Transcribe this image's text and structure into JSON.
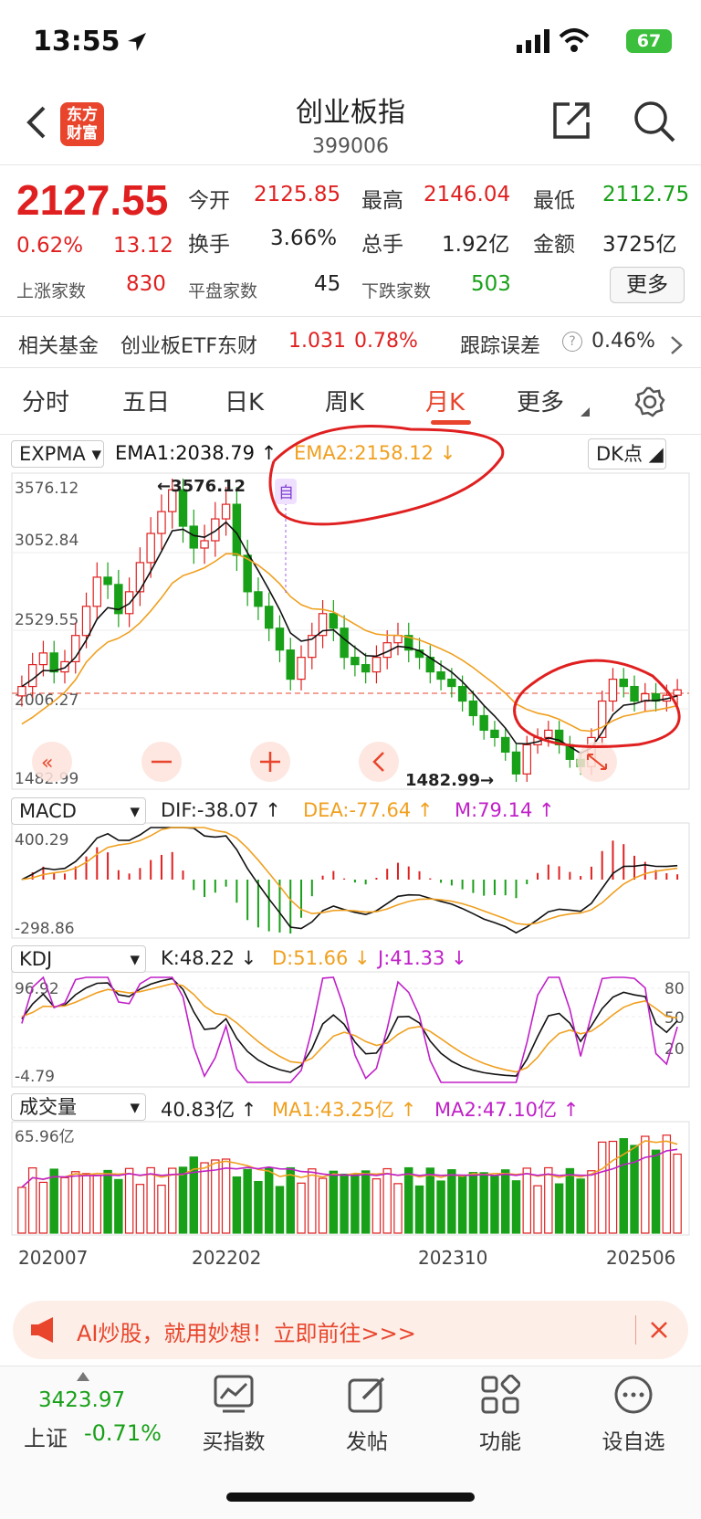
{
  "status": {
    "time": "13:55",
    "battery": "67"
  },
  "header": {
    "title": "创业板指",
    "code": "399006",
    "logo_line1": "东方",
    "logo_line2": "财富"
  },
  "quote": {
    "price": "2127.55",
    "change_pct": "0.62%",
    "change": "13.12",
    "open_label": "今开",
    "open": "2125.85",
    "high_label": "最高",
    "high": "2146.04",
    "low_label": "最低",
    "low": "2112.75",
    "turnover_label": "换手",
    "turnover": "3.66%",
    "volume_label": "总手",
    "volume": "1.92亿",
    "amount_label": "金额",
    "amount": "3725亿",
    "up_label": "上涨家数",
    "up": "830",
    "flat_label": "平盘家数",
    "flat": "45",
    "down_label": "下跌家数",
    "down": "503",
    "more_label": "更多"
  },
  "fund": {
    "label": "相关基金",
    "name": "创业板ETF东财",
    "price": "1.031",
    "pct": "0.78%",
    "err_label": "跟踪误差",
    "err": "0.46%"
  },
  "tabs": [
    "分时",
    "五日",
    "日K",
    "周K",
    "月K",
    "更多"
  ],
  "active_tab": "月K",
  "kline": {
    "indicator": "EXPMA",
    "ema1": "EMA1:2038.79",
    "ema2": "EMA2:2158.12",
    "dk": "DK点",
    "y_labels": [
      "3576.12",
      "3052.84",
      "2529.55",
      "2006.27",
      "1482.99"
    ],
    "high_mark": "3576.12",
    "low_mark": "1482.99",
    "self_tag": "自"
  },
  "macd": {
    "name": "MACD",
    "dif": "DIF:-38.07",
    "dea": "DEA:-77.64",
    "m": "M:79.14",
    "top": "400.29",
    "bottom": "-298.86"
  },
  "kdj": {
    "name": "KDJ",
    "k": "K:48.22",
    "d": "D:51.66",
    "j": "J:41.33",
    "top": "96.92",
    "bottom": "-4.79",
    "levels": [
      "80",
      "50",
      "20"
    ]
  },
  "vol": {
    "name": "成交量",
    "v": "40.83亿",
    "ma1": "MA1:43.25亿",
    "ma2": "MA2:47.10亿",
    "top": "65.96亿"
  },
  "x_labels": [
    "202007",
    "202202",
    "202310",
    "202506"
  ],
  "banner": {
    "text": "AI炒股，就用妙想！立即前往>>>"
  },
  "bottom": {
    "index_value": "3423.97",
    "index_name": "上证",
    "index_pct": "-0.71%",
    "items": [
      "买指数",
      "发帖",
      "功能",
      "设自选"
    ]
  },
  "colors": {
    "up": "#e02020",
    "down": "#18a018",
    "ema1": "#111111",
    "ema2": "#f0a020",
    "accent": "#e8452c",
    "purple": "#c020c8"
  },
  "chart_data": {
    "type": "candlestick",
    "title": "",
    "y_range": [
      1482.99,
      3576.12
    ],
    "closes": [
      2150,
      2300,
      2380,
      2250,
      2320,
      2500,
      2700,
      2900,
      2850,
      2650,
      2800,
      3000,
      3200,
      3350,
      3500,
      3250,
      3100,
      3150,
      3300,
      3400,
      3050,
      2800,
      2700,
      2550,
      2400,
      2200,
      2350,
      2500,
      2650,
      2550,
      2350,
      2300,
      2250,
      2350,
      2450,
      2500,
      2400,
      2350,
      2250,
      2200,
      2150,
      2050,
      1950,
      1850,
      1800,
      1700,
      1550,
      1750,
      1800,
      1850,
      1750,
      1650,
      1600,
      1800,
      2050,
      2200,
      2150,
      2050,
      2100,
      2050,
      2090,
      2127
    ]
  }
}
